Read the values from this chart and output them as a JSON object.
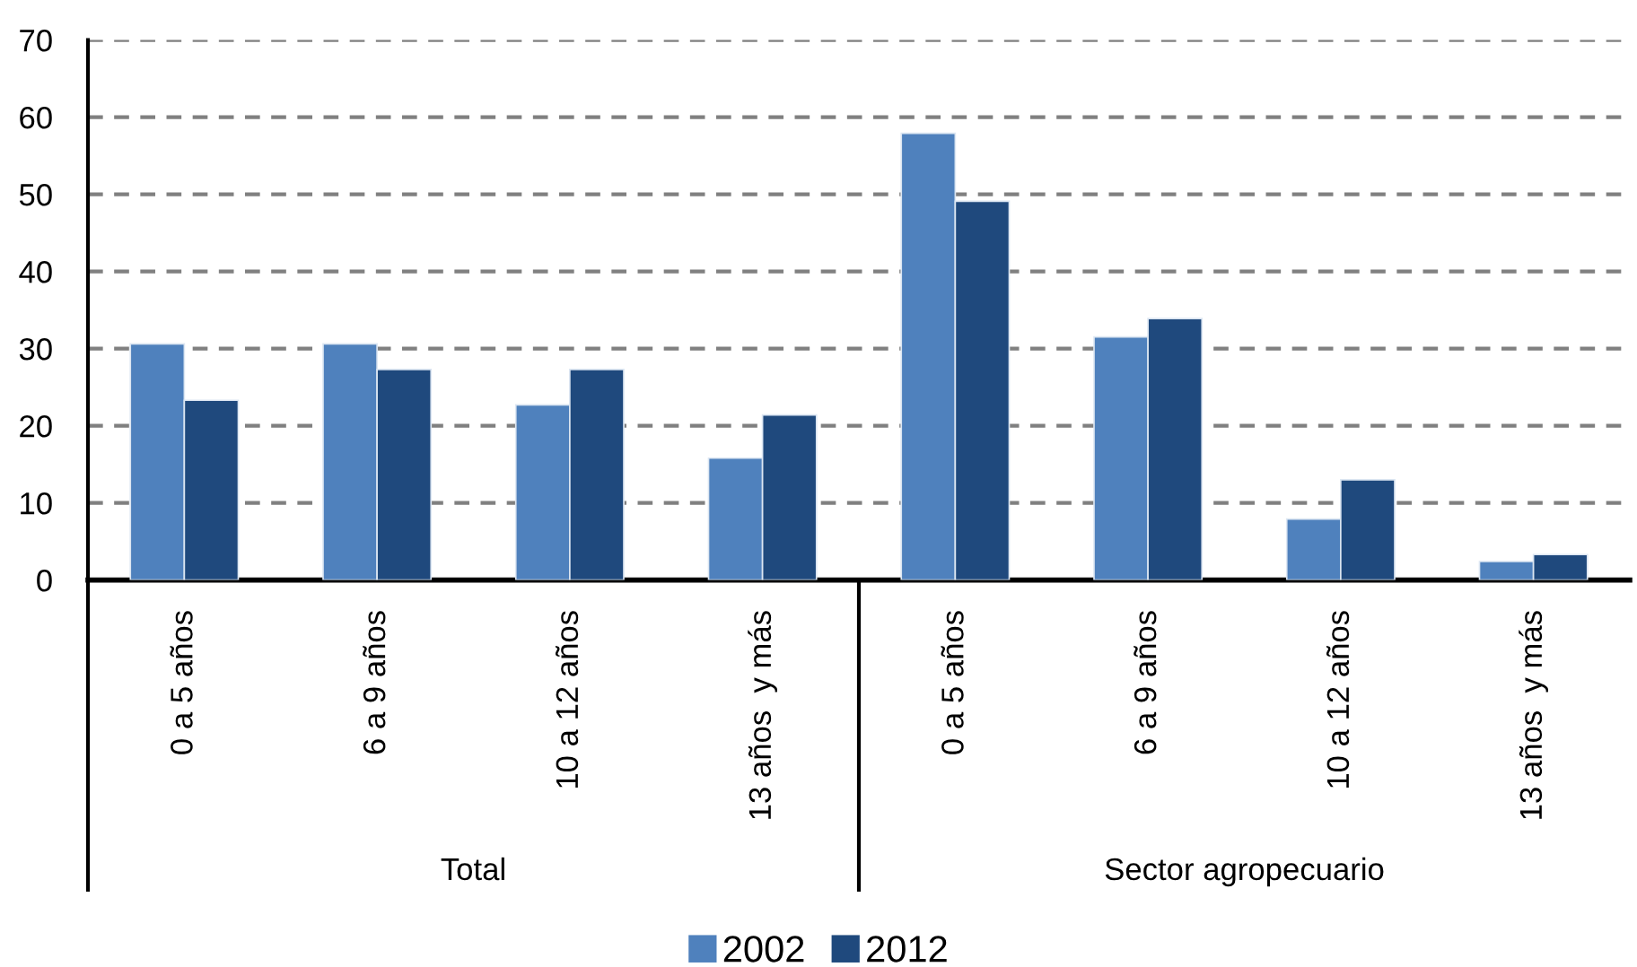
{
  "chart_data": {
    "type": "bar",
    "categories": [
      "0 a 5 años",
      "6 a 9 años",
      "10 a 12 años",
      "13 años  y más",
      "0 a 5 años",
      "6 a 9 años",
      "10 a 12 años",
      "13 años  y más"
    ],
    "series": [
      {
        "name": "2002",
        "color": "#4f81bd",
        "values": [
          30.6,
          30.6,
          22.7,
          15.8,
          57.9,
          31.5,
          7.9,
          2.4
        ]
      },
      {
        "name": "2012",
        "color": "#1f497d",
        "values": [
          23.3,
          27.3,
          27.3,
          21.4,
          49.1,
          33.9,
          13.0,
          3.3
        ]
      }
    ],
    "ylim": [
      0,
      70
    ],
    "yticks": [
      0,
      10,
      20,
      30,
      40,
      50,
      60,
      70
    ],
    "grid": "y",
    "legend": "bottom",
    "annotations": [
      "Total",
      "Sector agropecuario"
    ]
  }
}
